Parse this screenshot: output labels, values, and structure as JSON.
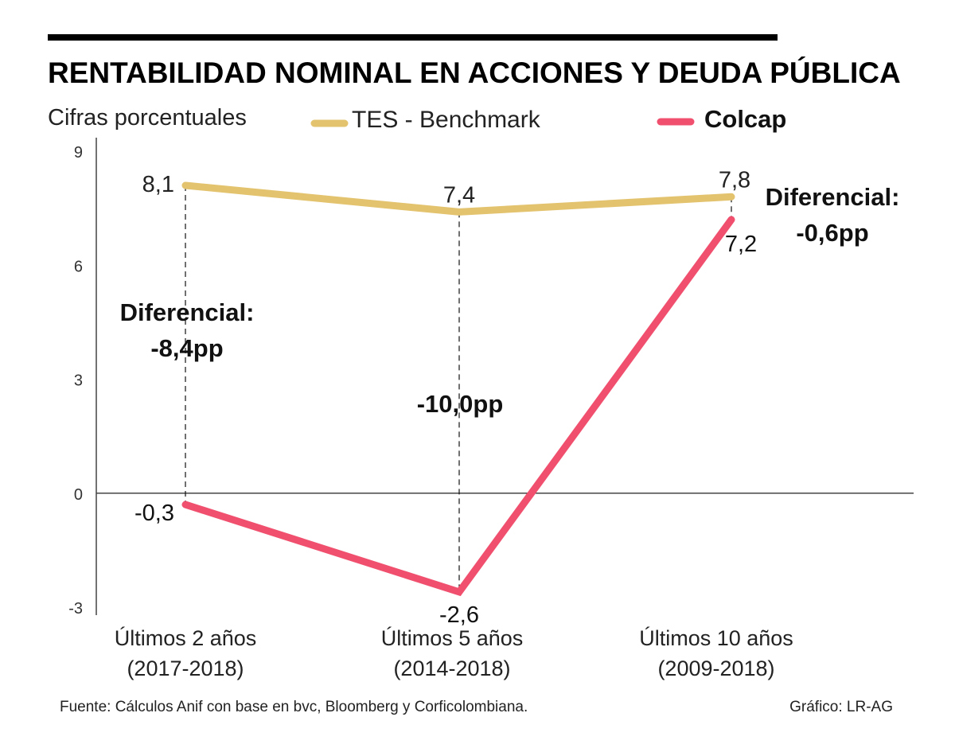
{
  "chart_data": {
    "type": "line",
    "title": "RENTABILIDAD NOMINAL EN ACCIONES Y DEUDA PÚBLICA",
    "subtitle": "Cifras porcentuales",
    "xlabel": "",
    "ylabel": "",
    "ylim": [
      -3,
      9
    ],
    "yticks": [
      9,
      6,
      3,
      0,
      -3
    ],
    "ytick_labels": [
      "9",
      "6",
      "3",
      "0",
      "-3"
    ],
    "grid": false,
    "legend_position": "top",
    "categories": [
      {
        "line1": "Últimos 2 años",
        "line2": "(2017-2018)"
      },
      {
        "line1": "Últimos 5 años",
        "line2": "(2014-2018)"
      },
      {
        "line1": "Últimos 10 años",
        "line2": "(2009-2018)"
      }
    ],
    "series": [
      {
        "name": "TES - Benchmark",
        "color": "#E3C36E",
        "values": [
          8.1,
          7.4,
          7.8
        ],
        "labels": [
          "8,1",
          "7,4",
          "7,8"
        ],
        "legend_bold": false
      },
      {
        "name": "Colcap",
        "color": "#F0506E",
        "values": [
          -0.3,
          -2.6,
          7.2
        ],
        "labels": [
          "-0,3",
          "-2,6",
          "7,2"
        ],
        "legend_bold": true
      }
    ],
    "annotations": [
      {
        "category_index": 0,
        "lines": [
          "Diferencial:",
          "-8,4pp"
        ]
      },
      {
        "category_index": 1,
        "lines": [
          "-10,0pp"
        ]
      },
      {
        "category_index": 2,
        "lines": [
          "Diferencial:",
          "-0,6pp"
        ]
      }
    ],
    "source": "Fuente: Cálculos Anif con base en bvc, Bloomberg y Corficolombiana.",
    "credit": "Gráfico: LR-AG"
  }
}
